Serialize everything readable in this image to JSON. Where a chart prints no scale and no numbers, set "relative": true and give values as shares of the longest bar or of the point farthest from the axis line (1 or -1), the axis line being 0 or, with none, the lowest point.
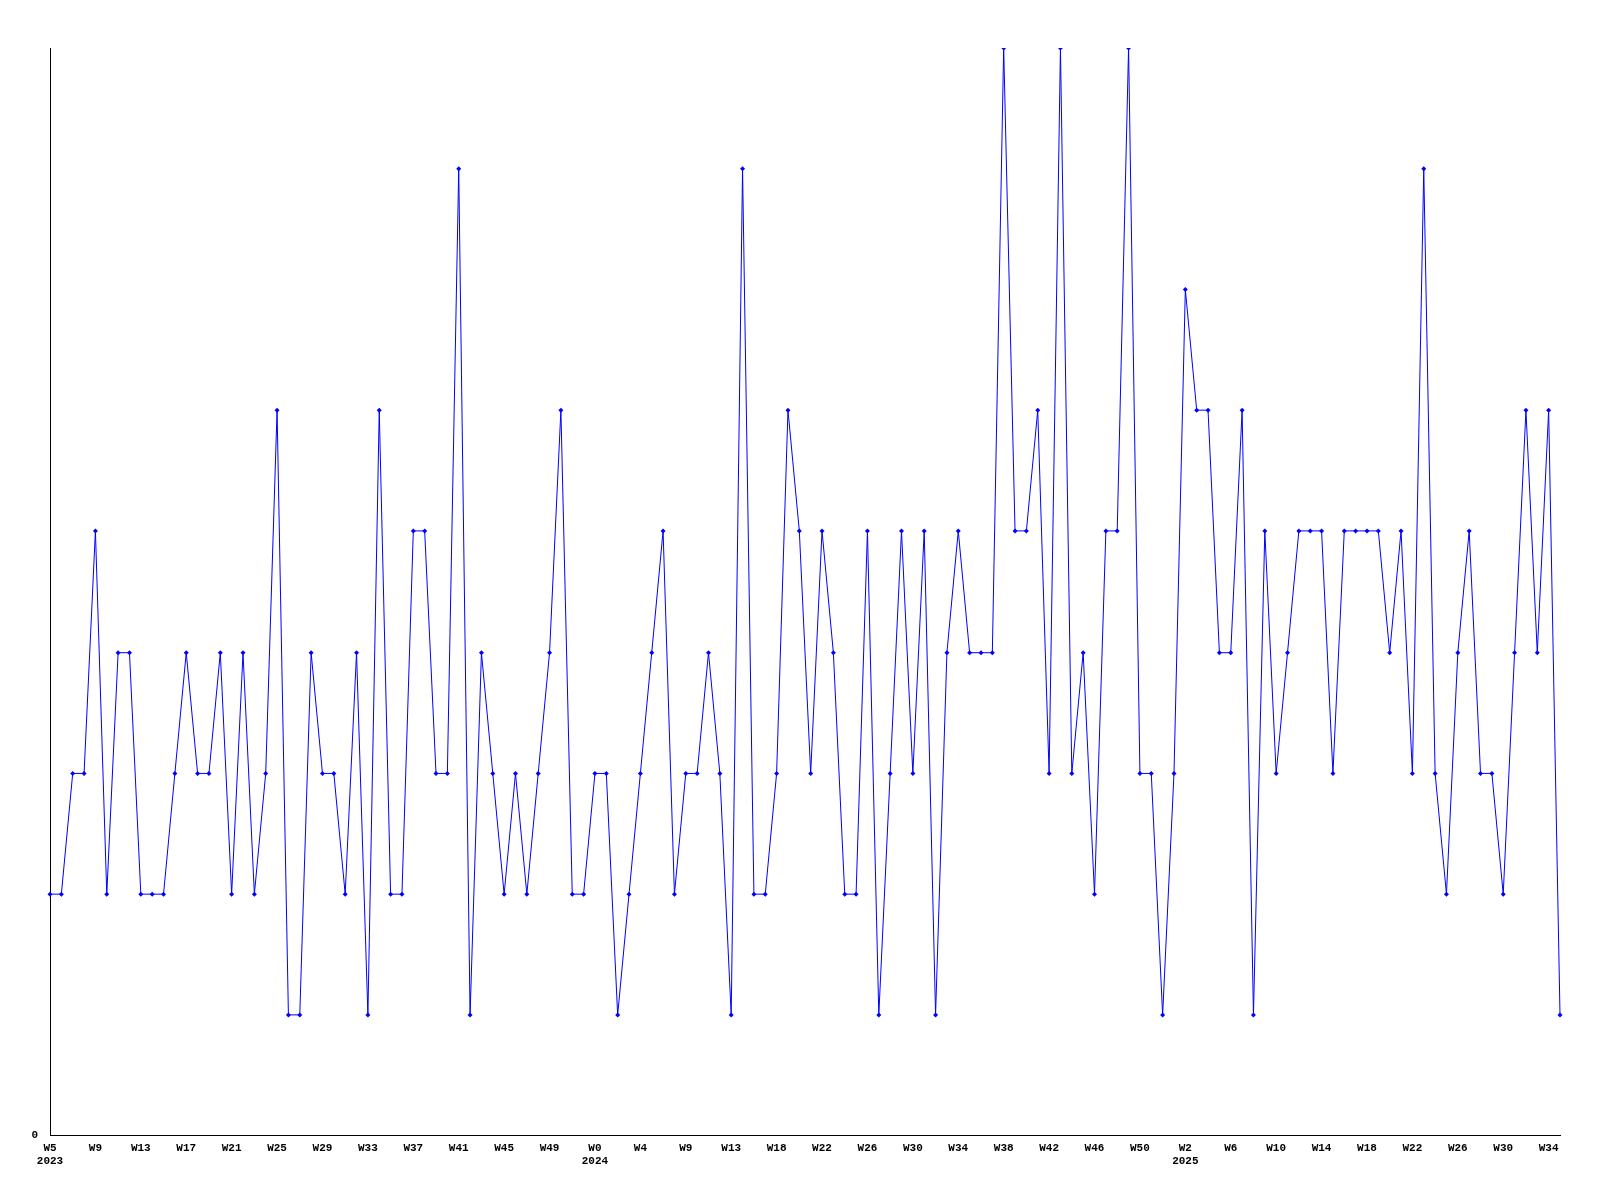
{
  "chart_data": {
    "type": "line",
    "relative": true,
    "marker": "diamond",
    "grid": false,
    "legend": false,
    "annotations": [
      "0"
    ],
    "categories": [
      "W5\n2023",
      null,
      null,
      null,
      "W9",
      null,
      null,
      null,
      "W13",
      null,
      null,
      null,
      "W17",
      null,
      null,
      null,
      "W21",
      null,
      null,
      null,
      "W25",
      null,
      null,
      null,
      "W29",
      null,
      null,
      null,
      "W33",
      null,
      null,
      null,
      "W37",
      null,
      null,
      null,
      "W41",
      null,
      null,
      null,
      "W45",
      null,
      null,
      null,
      "W49",
      null,
      null,
      null,
      "W0\n2024",
      null,
      null,
      null,
      "W4",
      null,
      null,
      null,
      "W9",
      null,
      null,
      null,
      "W13",
      null,
      null,
      null,
      "W18",
      null,
      null,
      null,
      "W22",
      null,
      null,
      null,
      "W26",
      null,
      null,
      null,
      "W30",
      null,
      null,
      null,
      "W34",
      null,
      null,
      null,
      "W38",
      null,
      null,
      null,
      "W42",
      null,
      null,
      null,
      "W46",
      null,
      null,
      null,
      "W50",
      null,
      null,
      null,
      "W2\n2025",
      null,
      null,
      null,
      "W6",
      null,
      null,
      null,
      "W10",
      null,
      null,
      null,
      "W14",
      null,
      null,
      null,
      "W18",
      null,
      null,
      null,
      "W22",
      null,
      null,
      null,
      "W26",
      null,
      null,
      null,
      "W30",
      null,
      null,
      null,
      "W34",
      null
    ],
    "series": [
      {
        "color": "#0000ff",
        "values": [
          0.222,
          0.222,
          0.333,
          0.333,
          0.556,
          0.222,
          0.444,
          0.444,
          0.222,
          0.222,
          0.222,
          0.333,
          0.444,
          0.333,
          0.333,
          0.444,
          0.222,
          0.444,
          0.222,
          0.333,
          0.667,
          0.111,
          0.111,
          0.444,
          0.333,
          0.333,
          0.222,
          0.444,
          0.111,
          0.667,
          0.222,
          0.222,
          0.556,
          0.556,
          0.333,
          0.333,
          0.889,
          0.111,
          0.444,
          0.333,
          0.222,
          0.333,
          0.222,
          0.333,
          0.444,
          0.667,
          0.222,
          0.222,
          0.333,
          0.333,
          0.111,
          0.222,
          0.333,
          0.444,
          0.556,
          0.222,
          0.333,
          0.333,
          0.444,
          0.333,
          0.111,
          0.889,
          0.222,
          0.222,
          0.333,
          0.667,
          0.556,
          0.333,
          0.556,
          0.444,
          0.222,
          0.222,
          0.556,
          0.111,
          0.333,
          0.556,
          0.333,
          0.556,
          0.111,
          0.444,
          0.556,
          0.444,
          0.444,
          0.444,
          1,
          0.556,
          0.556,
          0.667,
          0.333,
          1,
          0.333,
          0.444,
          0.222,
          0.556,
          0.556,
          1,
          0.333,
          0.333,
          0.111,
          0.333,
          0.778,
          0.667,
          0.667,
          0.444,
          0.444,
          0.667,
          0.111,
          0.556,
          0.333,
          0.444,
          0.556,
          0.556,
          0.556,
          0.333,
          0.556,
          0.556,
          0.556,
          0.556,
          0.444,
          0.556,
          0.333,
          0.889,
          0.333,
          0.222,
          0.444,
          0.556,
          0.333,
          0.333,
          0.222,
          0.444,
          0.667,
          0.444,
          0.667,
          0.111
        ]
      }
    ]
  }
}
